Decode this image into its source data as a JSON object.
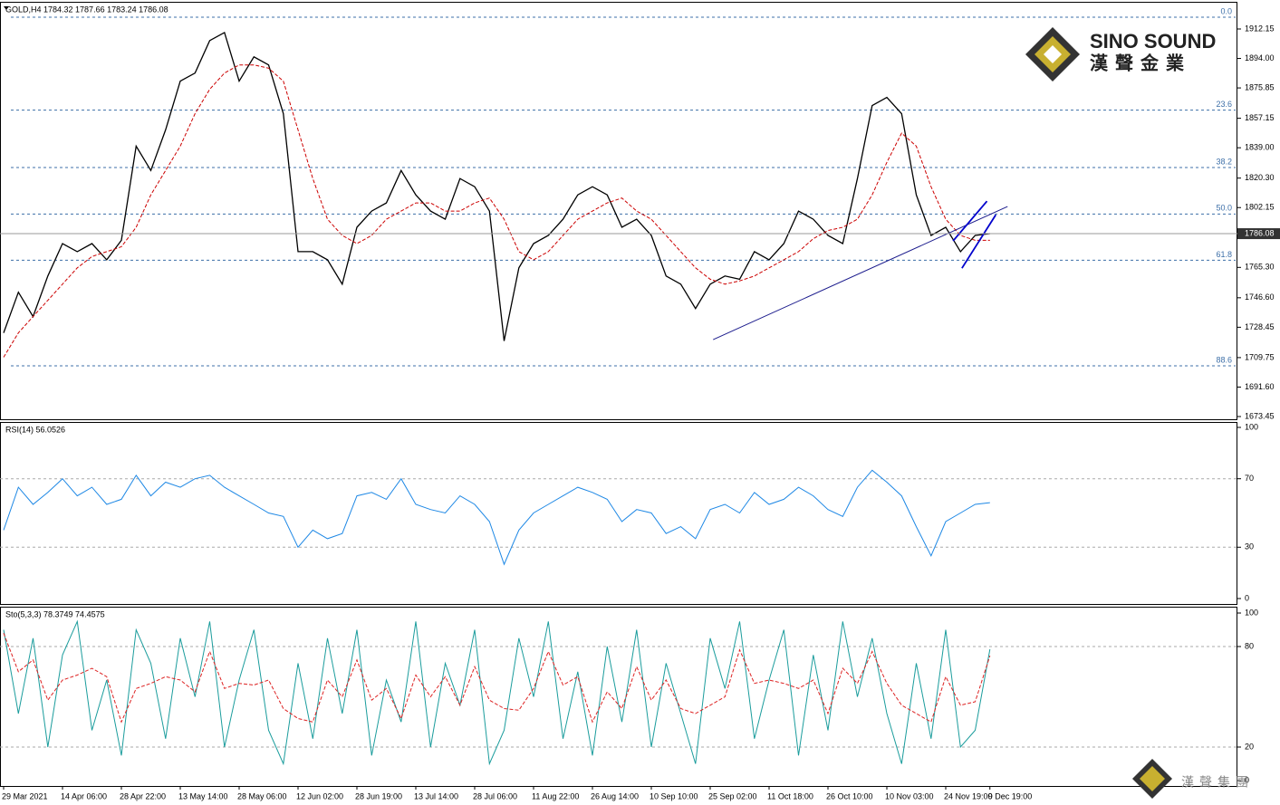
{
  "chart_data": [
    {
      "type": "line",
      "title": "GOLD,H4  1784.32 1787.66 1783.24 1786.08",
      "ylim": [
        1673.45,
        1912.15
      ],
      "yticks": [
        {
          "value": 1912.15,
          "label": "1912.15"
        },
        {
          "value": 1894.0,
          "label": "1894.00"
        },
        {
          "value": 1875.85,
          "label": "1875.85"
        },
        {
          "value": 1857.15,
          "label": "1857.15"
        },
        {
          "value": 1839.0,
          "label": "1839.00"
        },
        {
          "value": 1820.3,
          "label": "1820.30"
        },
        {
          "value": 1802.15,
          "label": "1802.15"
        },
        {
          "value": 1765.3,
          "label": "1765.30"
        },
        {
          "value": 1746.6,
          "label": "1746.60"
        },
        {
          "value": 1728.45,
          "label": "1728.45"
        },
        {
          "value": 1709.75,
          "label": "1709.75"
        },
        {
          "value": 1691.6,
          "label": "1691.60"
        },
        {
          "value": 1673.45,
          "label": "1673.45"
        }
      ],
      "series": [
        {
          "color": "#000000",
          "values": [
            1725,
            1750,
            1735,
            1760,
            1780,
            1775,
            1780,
            1770,
            1782,
            1840,
            1825,
            1850,
            1880,
            1885,
            1905,
            1910,
            1880,
            1895,
            1890,
            1860,
            1775,
            1775,
            1770,
            1755,
            1790,
            1800,
            1805,
            1825,
            1810,
            1800,
            1795,
            1820,
            1815,
            1800,
            1720,
            1765,
            1780,
            1785,
            1795,
            1810,
            1815,
            1810,
            1790,
            1795,
            1785,
            1760,
            1755,
            1740,
            1755,
            1760,
            1758,
            1775,
            1770,
            1780,
            1800,
            1795,
            1785,
            1780,
            1820,
            1865,
            1870,
            1860,
            1810,
            1785,
            1790,
            1775,
            1785,
            1786.08
          ]
        },
        {
          "color": "#cc0000",
          "dashed": true,
          "values": [
            1710,
            1725,
            1735,
            1745,
            1755,
            1765,
            1772,
            1775,
            1778,
            1790,
            1810,
            1825,
            1840,
            1860,
            1875,
            1885,
            1890,
            1890,
            1888,
            1880,
            1850,
            1820,
            1795,
            1785,
            1780,
            1785,
            1795,
            1800,
            1805,
            1805,
            1800,
            1800,
            1805,
            1808,
            1795,
            1775,
            1770,
            1775,
            1785,
            1795,
            1800,
            1805,
            1808,
            1800,
            1795,
            1785,
            1775,
            1765,
            1758,
            1755,
            1757,
            1760,
            1765,
            1770,
            1775,
            1783,
            1788,
            1790,
            1795,
            1810,
            1830,
            1848,
            1840,
            1815,
            1795,
            1785,
            1782,
            1782
          ]
        }
      ],
      "fib_levels": [
        {
          "value": 1919.4,
          "label": "0.0"
        },
        {
          "value": 1862.2,
          "label": "23.6"
        },
        {
          "value": 1826.8,
          "label": "38.2"
        },
        {
          "value": 1798.2,
          "label": "50.0"
        },
        {
          "value": 1769.7,
          "label": "61.8"
        },
        {
          "value": 1704.7,
          "label": "88.6"
        }
      ],
      "trendlines": [
        {
          "x": [
            48.2,
            68.2
          ],
          "y": [
            1720.8,
            1802.8
          ],
          "color": "#1a1a8c"
        },
        {
          "x": [
            64.5,
            66.8
          ],
          "y": [
            1781.6,
            1806.1
          ],
          "color": "#0000cc"
        },
        {
          "x": [
            65.1,
            67.4
          ],
          "y": [
            1764.8,
            1797.7
          ],
          "color": "#0000cc"
        }
      ]
    },
    {
      "type": "line",
      "title": "RSI(14) 56.0526",
      "ylim": [
        0,
        100
      ],
      "yticks": [
        0,
        30,
        70,
        100
      ],
      "series": [
        {
          "color": "#1e88e5",
          "values": [
            40,
            65,
            55,
            62,
            70,
            60,
            65,
            55,
            58,
            72,
            60,
            68,
            65,
            70,
            72,
            65,
            60,
            55,
            50,
            48,
            30,
            40,
            35,
            38,
            60,
            62,
            58,
            70,
            55,
            52,
            50,
            60,
            55,
            45,
            20,
            40,
            50,
            55,
            60,
            65,
            62,
            58,
            45,
            52,
            50,
            38,
            42,
            35,
            52,
            55,
            50,
            62,
            55,
            58,
            65,
            60,
            52,
            48,
            65,
            75,
            68,
            60,
            42,
            25,
            45,
            50,
            55,
            56.05
          ]
        }
      ]
    },
    {
      "type": "line",
      "title": "Sto(5,3,3) 78.3749 74.4575",
      "ylim": [
        0,
        100
      ],
      "yticks": [
        0,
        20,
        80,
        100
      ],
      "categories": [
        "29 Mar 2021",
        null,
        null,
        null,
        "14 Apr 06:00",
        null,
        null,
        null,
        "28 Apr 22:00",
        null,
        null,
        null,
        "13 May 14:00",
        null,
        null,
        null,
        "28 May 06:00",
        null,
        null,
        null,
        "12 Jun 02:00",
        null,
        null,
        null,
        "28 Jun 19:00",
        null,
        null,
        null,
        "13 Jul 14:00",
        null,
        null,
        null,
        "28 Jul 06:00",
        null,
        null,
        null,
        "11 Aug 22:00",
        null,
        null,
        null,
        "26 Aug 14:00",
        null,
        null,
        null,
        "10 Sep 10:00",
        null,
        null,
        null,
        "25 Sep 02:00",
        null,
        null,
        null,
        "11 Oct 18:00",
        null,
        null,
        null,
        "26 Oct 10:00",
        null,
        null,
        null,
        "10 Nov 03:00",
        null,
        null,
        null,
        "24 Nov 19:00",
        null,
        null,
        "9 Dec 19:00"
      ],
      "series": [
        {
          "color": "#1a9c9c",
          "values": [
            90,
            40,
            85,
            20,
            75,
            95,
            30,
            60,
            15,
            90,
            70,
            25,
            85,
            50,
            95,
            20,
            60,
            90,
            30,
            10,
            70,
            25,
            85,
            40,
            90,
            15,
            60,
            35,
            95,
            20,
            70,
            45,
            90,
            10,
            30,
            85,
            50,
            95,
            25,
            65,
            15,
            80,
            35,
            90,
            20,
            70,
            40,
            10,
            85,
            55,
            95,
            25,
            60,
            90,
            15,
            75,
            30,
            95,
            50,
            85,
            40,
            10,
            70,
            25,
            90,
            20,
            30,
            78.37
          ]
        },
        {
          "color": "#dd2222",
          "dashed": true,
          "values": [
            88,
            65,
            72,
            48,
            60,
            63,
            67,
            62,
            35,
            55,
            58,
            62,
            60,
            53,
            77,
            55,
            58,
            57,
            60,
            43,
            37,
            35,
            60,
            50,
            72,
            48,
            55,
            37,
            63,
            50,
            62,
            45,
            68,
            48,
            43,
            42,
            55,
            77,
            57,
            62,
            35,
            53,
            43,
            68,
            48,
            60,
            43,
            40,
            45,
            50,
            78,
            58,
            60,
            58,
            55,
            60,
            40,
            67,
            58,
            77,
            58,
            45,
            40,
            35,
            62,
            45,
            47,
            74.46
          ]
        }
      ]
    }
  ],
  "branding": {
    "name": "SINO SOUND",
    "chinese": "漢聲金業",
    "group": "漢聲集團"
  }
}
